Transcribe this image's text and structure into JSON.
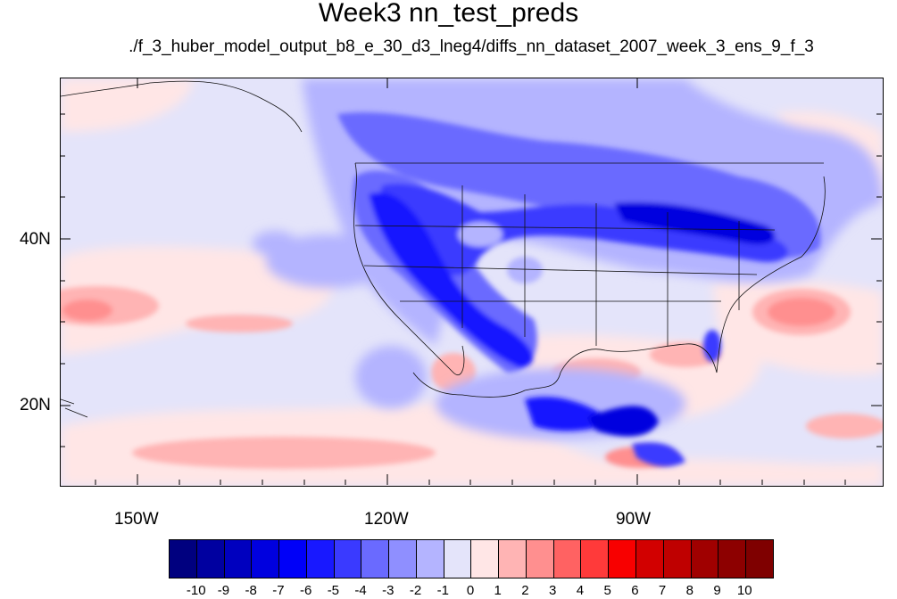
{
  "figure": {
    "title": "Week3 nn_test_preds",
    "subtitle": "./f_3_huber_model_output_b8_e_30_d3_lneg4/diffs_nn_dataset_2007_week_3_ens_9_f_3"
  },
  "map": {
    "lat_labels": [
      "40N",
      "20N"
    ],
    "lon_labels": [
      "150W",
      "120W",
      "90W"
    ]
  },
  "colorbar": {
    "labels": [
      "-10",
      "-9",
      "-8",
      "-7",
      "-6",
      "-5",
      "-4",
      "-3",
      "-2",
      "-1",
      "0",
      "1",
      "2",
      "3",
      "4",
      "5",
      "6",
      "7",
      "8",
      "9",
      "10"
    ],
    "colors": [
      "#00007f",
      "#0000a0",
      "#0000bf",
      "#0000df",
      "#0000f8",
      "#1818ff",
      "#3a3aff",
      "#6a6aff",
      "#8f8fff",
      "#b4b4ff",
      "#e4e4fa",
      "#ffe6e6",
      "#ffb4b4",
      "#ff8f8f",
      "#ff6262",
      "#ff3a3a",
      "#f80000",
      "#d20000",
      "#bf0000",
      "#a00000",
      "#8d0000",
      "#7f0000"
    ]
  }
}
